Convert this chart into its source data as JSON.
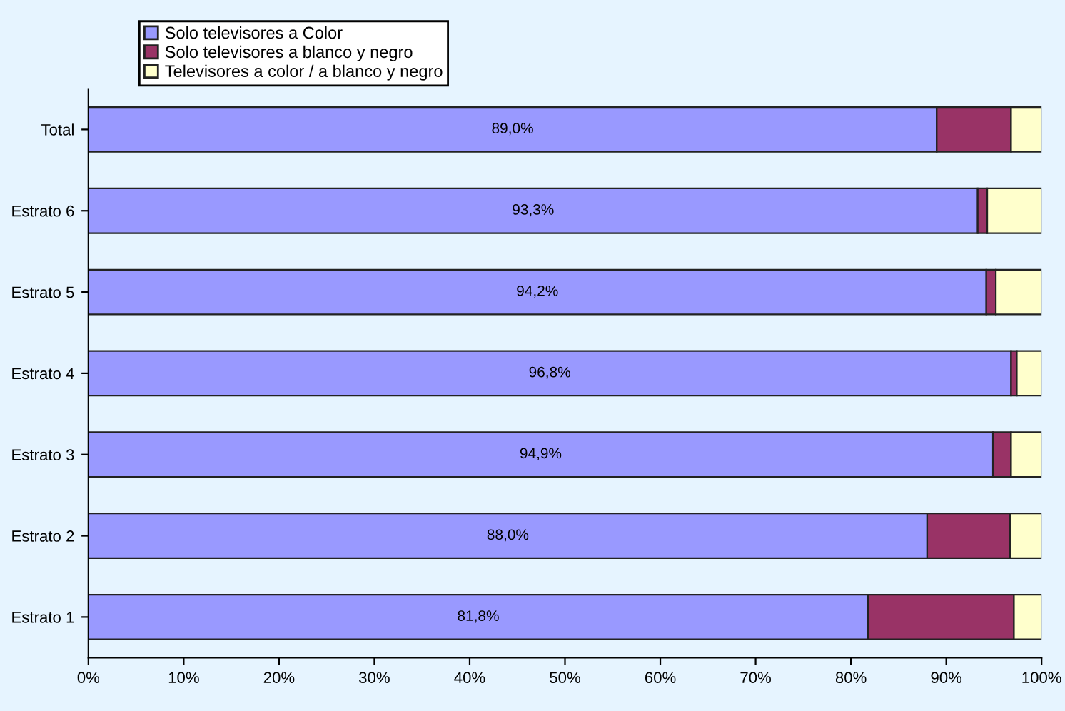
{
  "chart_data": {
    "type": "bar",
    "orientation": "horizontal",
    "stacked": true,
    "categories": [
      "Total",
      "Estrato 6",
      "Estrato 5",
      "Estrato 4",
      "Estrato 3",
      "Estrato 2",
      "Estrato 1"
    ],
    "series": [
      {
        "name": "Solo televisores a Color",
        "color": "#9999ff",
        "values": [
          89.0,
          93.3,
          94.2,
          96.8,
          94.9,
          88.0,
          81.8
        ],
        "value_labels": [
          "89,0%",
          "93,3%",
          "94,2%",
          "96,8%",
          "94,9%",
          "88,0%",
          "81,8%"
        ]
      },
      {
        "name": "Solo televisores a blanco y negro",
        "color": "#993366",
        "values": [
          7.8,
          1.0,
          1.0,
          0.6,
          1.9,
          8.7,
          15.3
        ]
      },
      {
        "name": "Televisores a color / a blanco y negro",
        "color": "#ffffcc",
        "values": [
          3.2,
          5.7,
          4.8,
          2.6,
          3.2,
          3.3,
          2.9
        ]
      }
    ],
    "xlim": [
      0,
      100
    ],
    "xticks": [
      {
        "value": 0,
        "label": "0%"
      },
      {
        "value": 10,
        "label": "10%"
      },
      {
        "value": 20,
        "label": "20%"
      },
      {
        "value": 30,
        "label": "30%"
      },
      {
        "value": 40,
        "label": "40%"
      },
      {
        "value": 50,
        "label": "50%"
      },
      {
        "value": 60,
        "label": "60%"
      },
      {
        "value": 70,
        "label": "70%"
      },
      {
        "value": 80,
        "label": "80%"
      },
      {
        "value": 90,
        "label": "90%"
      },
      {
        "value": 100,
        "label": "100%"
      }
    ],
    "grid": false,
    "legend": "top left"
  }
}
